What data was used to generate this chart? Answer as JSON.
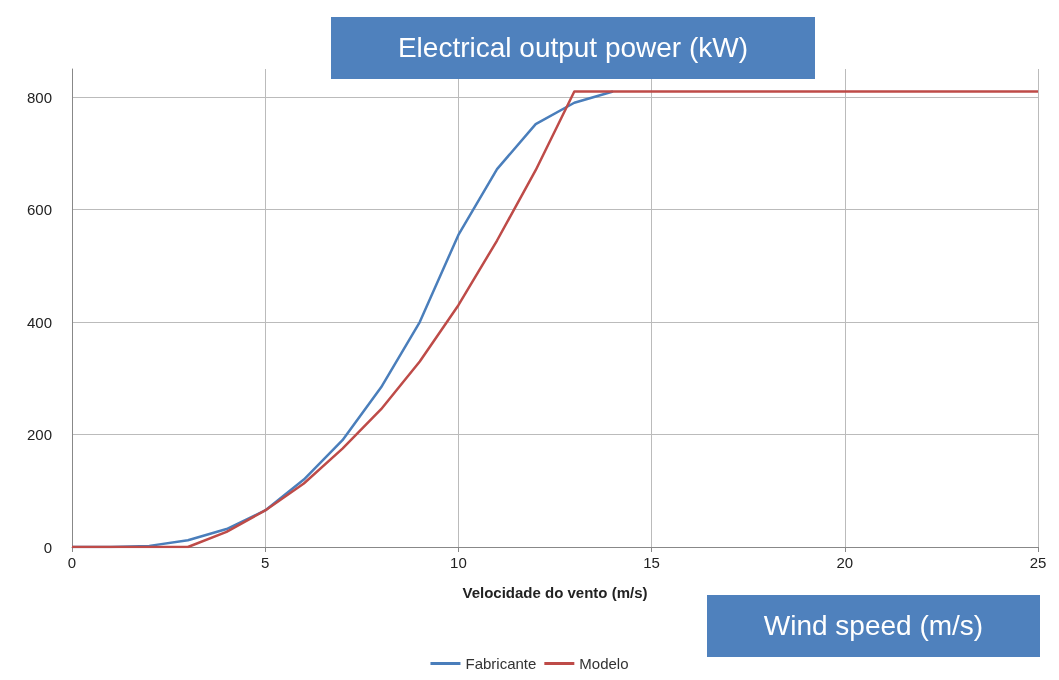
{
  "chart_data": {
    "type": "line",
    "xlabel": "Velocidade do vento (m/s)",
    "annotations": [
      "Electrical output power (kW)",
      "Wind speed (m/s)"
    ],
    "x": [
      0,
      1,
      2,
      3,
      4,
      5,
      6,
      7,
      8,
      9,
      10,
      11,
      12,
      13,
      14,
      15,
      16,
      17,
      18,
      19,
      20,
      21,
      22,
      23,
      24,
      25
    ],
    "series": [
      {
        "name": "Fabricante",
        "color": "#4a7ebb",
        "values": [
          0,
          0,
          2,
          12,
          32,
          65,
          120,
          190,
          284,
          400,
          555,
          672,
          752,
          790,
          810,
          null,
          null,
          null,
          null,
          null,
          null,
          null,
          null,
          null,
          null,
          null
        ]
      },
      {
        "name": "Modelo",
        "color": "#be4b48",
        "values": [
          0,
          0,
          0,
          0,
          27,
          65,
          113,
          175,
          245,
          330,
          430,
          545,
          670,
          810,
          810,
          810,
          810,
          810,
          810,
          810,
          810,
          810,
          810,
          810,
          810,
          810
        ]
      }
    ],
    "xlim": [
      0,
      25
    ],
    "xticks": [
      0,
      5,
      10,
      15,
      20,
      25
    ],
    "ylim": [
      0,
      850
    ],
    "yticks": [
      0,
      200,
      400,
      600,
      800
    ],
    "grid": true,
    "legend": "bottom",
    "marker": "none",
    "line_style": "solid"
  }
}
